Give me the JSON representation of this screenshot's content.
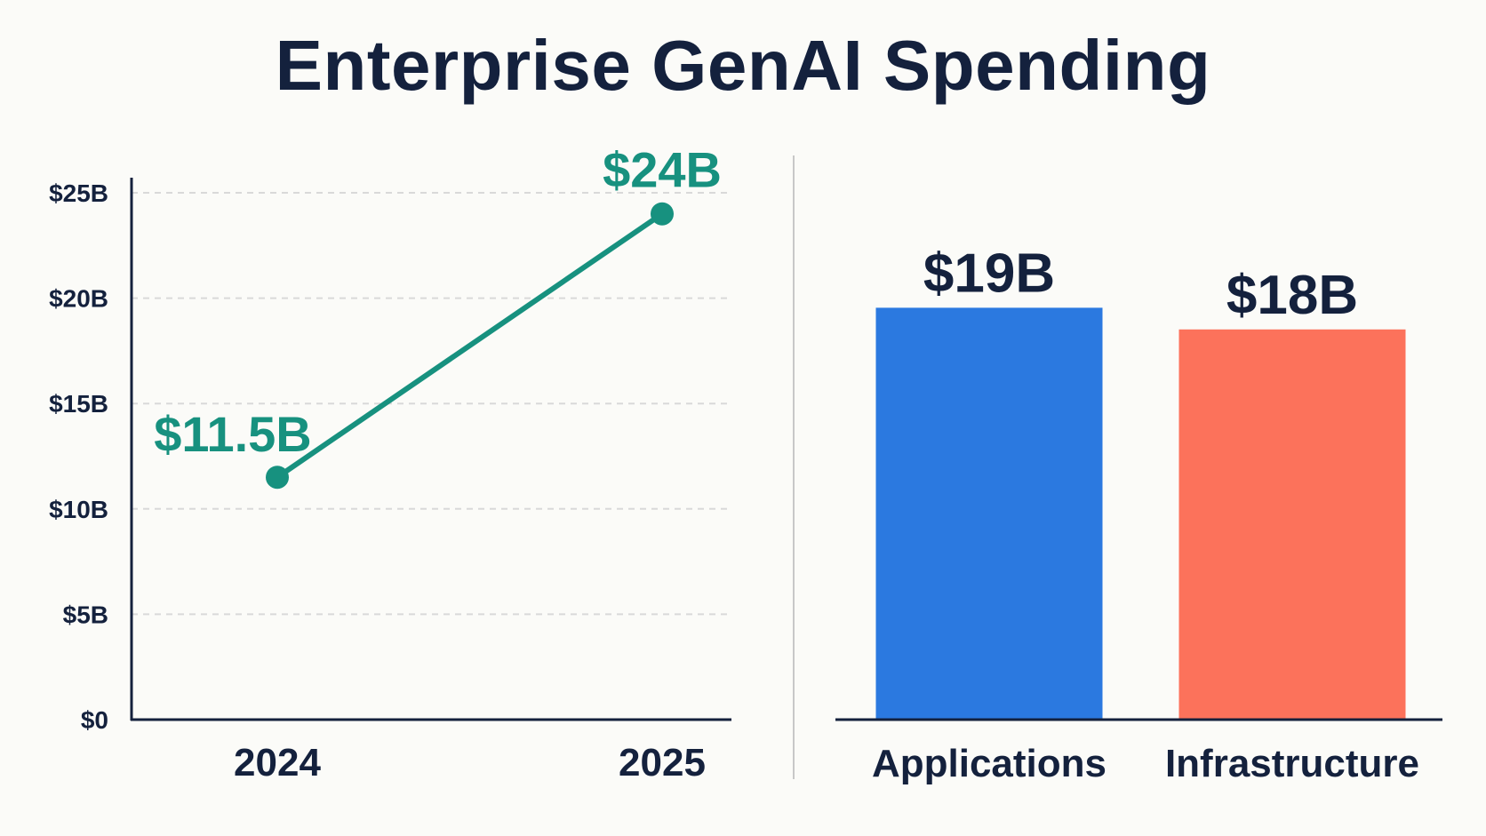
{
  "title": "Enterprise GenAI Spending",
  "chart_data": [
    {
      "type": "line",
      "x": [
        "2024",
        "2025"
      ],
      "y_tick_labels": [
        "$0",
        "$5B",
        "$10B",
        "$15B",
        "$20B",
        "$25B"
      ],
      "y_ticks": [
        0,
        5,
        10,
        15,
        20,
        25
      ],
      "ylim": [
        0,
        25
      ],
      "grid": true,
      "series": [
        {
          "values": [
            11.5,
            24
          ],
          "data_labels": [
            "$11.5B",
            "$24B"
          ],
          "color": "#17917f"
        }
      ]
    },
    {
      "type": "bar",
      "categories": [
        "Applications",
        "Infrastructure"
      ],
      "values": [
        19,
        18
      ],
      "data_labels": [
        "$19B",
        "$18B"
      ],
      "colors": [
        "#2b79e0",
        "#fc725b"
      ],
      "grid": false
    }
  ],
  "colors": {
    "text": "#14213d",
    "grid": "#d9d9d9",
    "divider": "#c8c8c8",
    "background": "#fbfbf8"
  }
}
